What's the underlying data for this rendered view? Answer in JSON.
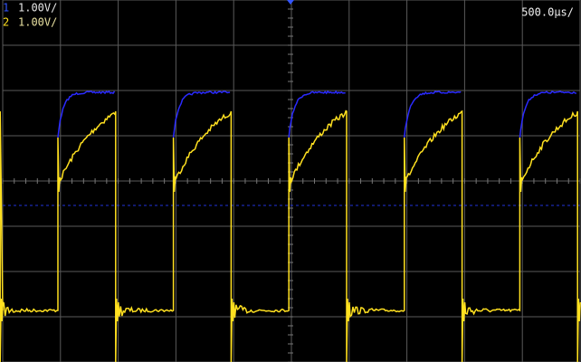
{
  "channels": [
    {
      "label": "1",
      "scale": "1.00V/"
    },
    {
      "label": "2",
      "scale": "1.00V/"
    }
  ],
  "timebase": "500.0µs/"
}
